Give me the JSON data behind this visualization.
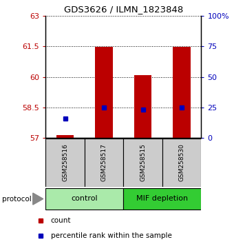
{
  "title": "GDS3626 / ILMN_1823848",
  "samples": [
    "GSM258516",
    "GSM258517",
    "GSM258515",
    "GSM258530"
  ],
  "count_values": [
    57.15,
    61.47,
    60.07,
    61.47
  ],
  "percentile_values": [
    57.95,
    58.5,
    58.38,
    58.5
  ],
  "ylim_left": [
    57,
    63
  ],
  "ylim_right": [
    0,
    100
  ],
  "yticks_left": [
    57,
    58.5,
    60,
    61.5,
    63
  ],
  "yticks_right": [
    0,
    25,
    50,
    75,
    100
  ],
  "ytick_labels_left": [
    "57",
    "58.5",
    "60",
    "61.5",
    "63"
  ],
  "ytick_labels_right": [
    "0",
    "25",
    "50",
    "75",
    "100%"
  ],
  "bar_color": "#bb0000",
  "dot_color": "#0000bb",
  "bar_bottom": 57,
  "bar_width": 0.45,
  "groups": [
    {
      "label": "control",
      "samples": [
        0,
        1
      ],
      "color": "#aaeaaa"
    },
    {
      "label": "MIF depletion",
      "samples": [
        2,
        3
      ],
      "color": "#33cc33"
    }
  ],
  "group_box_color": "#cccccc",
  "legend_count_label": "count",
  "legend_percentile_label": "percentile rank within the sample",
  "protocol_label": "protocol",
  "background_color": "#ffffff"
}
